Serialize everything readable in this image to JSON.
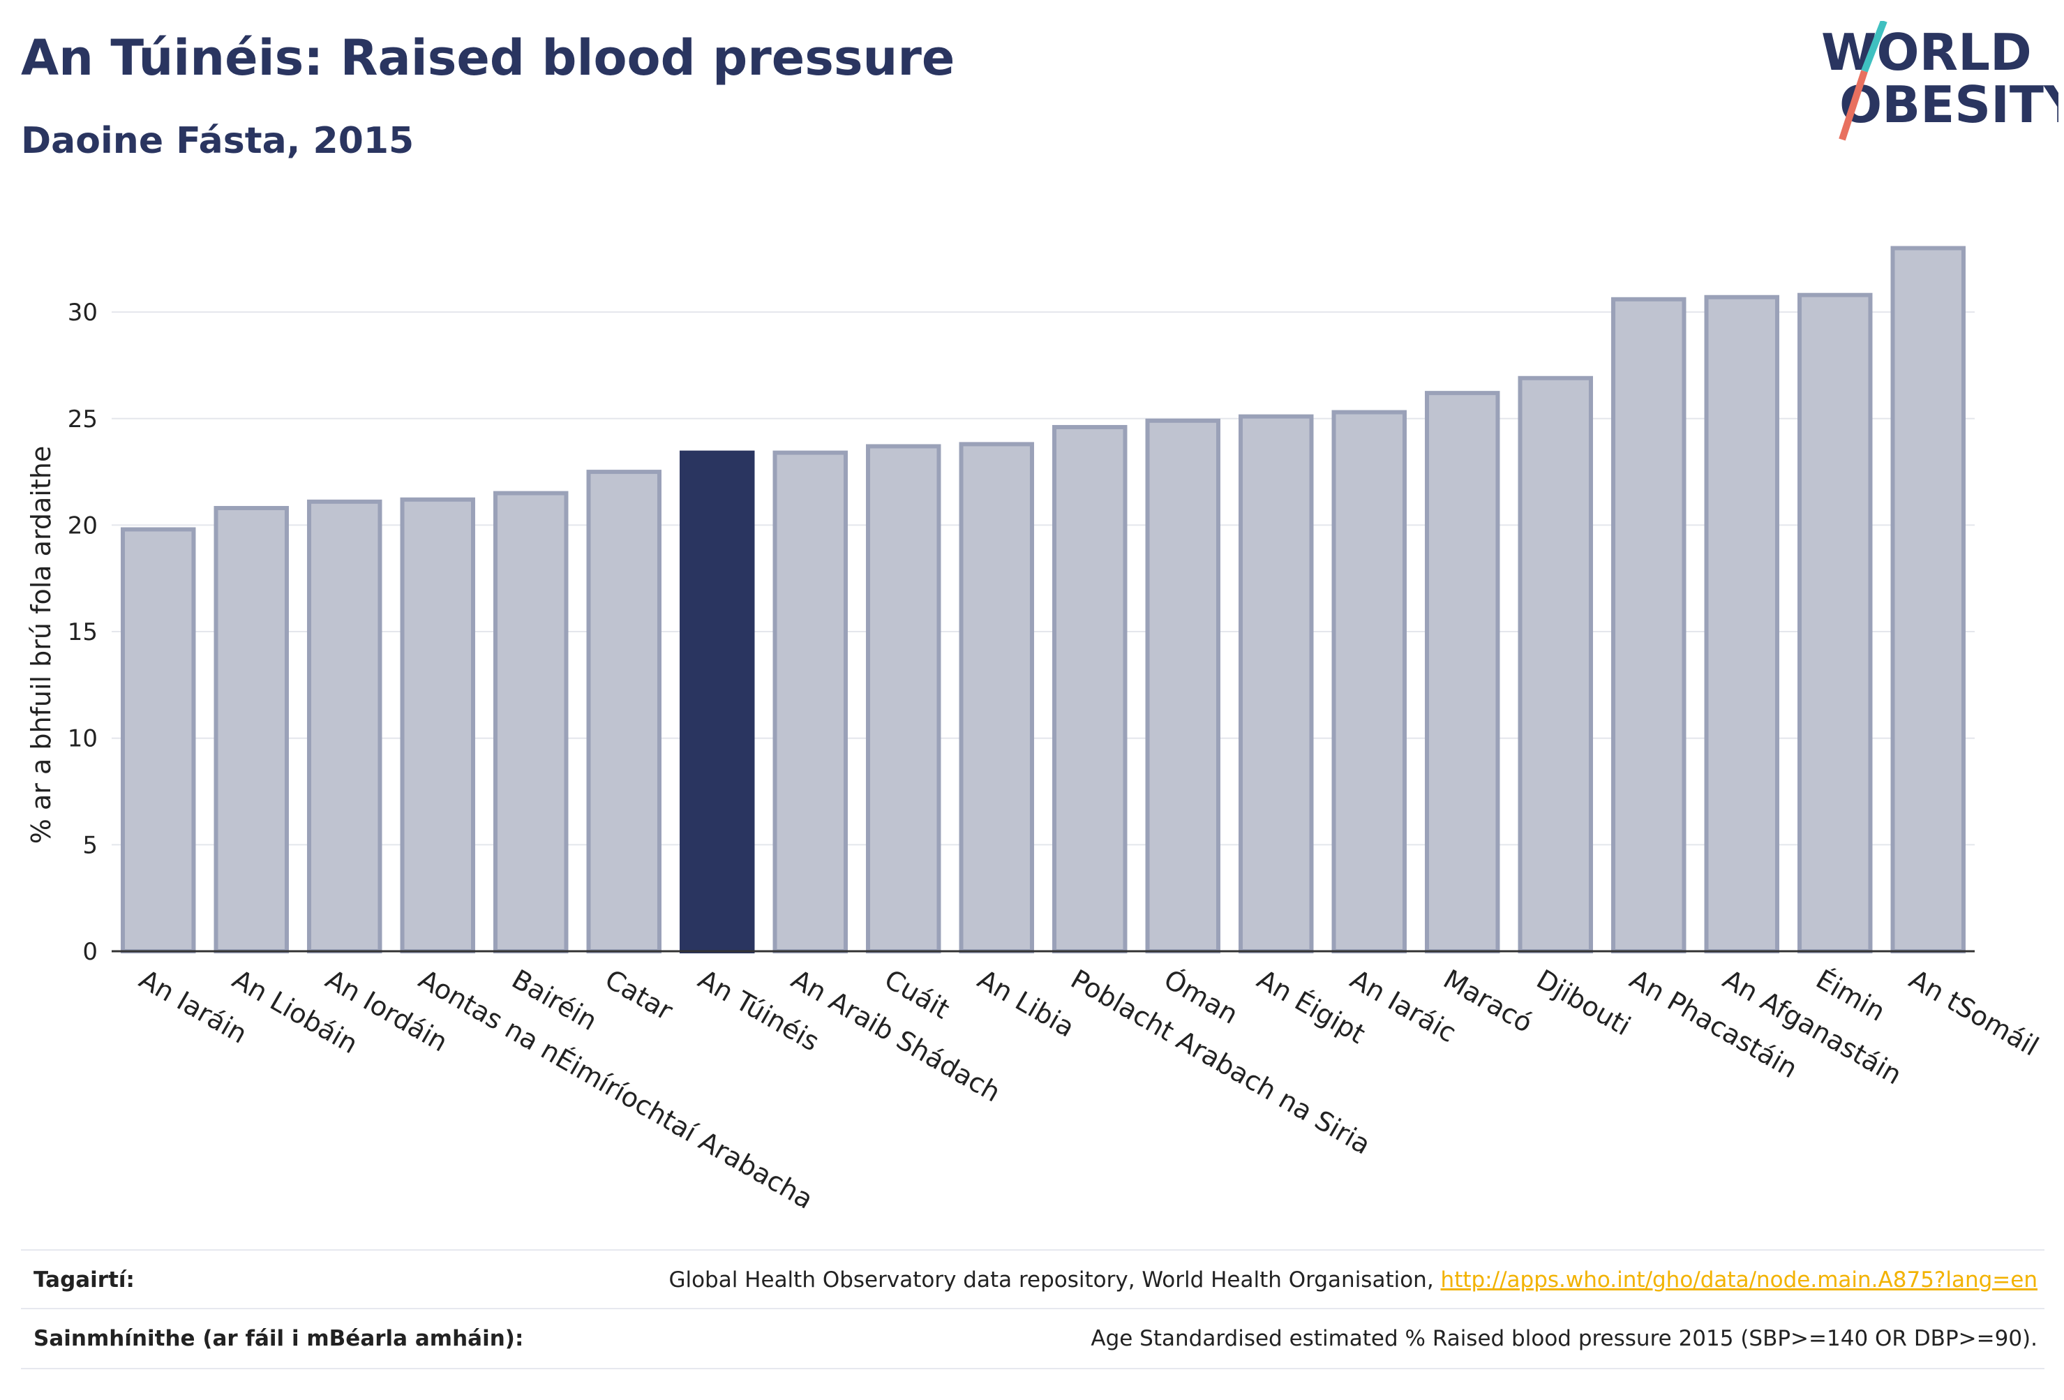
{
  "header": {
    "title": "An Túinéis: Raised blood pressure",
    "subtitle": "Daoine Fásta, 2015"
  },
  "logo": {
    "line1": "WORLD",
    "line2": "OBESITY"
  },
  "colors": {
    "highlight": "#2a3560",
    "bar": "#bfc3d0",
    "bar_edge": "#9aa1b8",
    "accent_teal": "#3fc0c0",
    "accent_red": "#e8705f",
    "link": "#f2b200"
  },
  "chart_data": {
    "type": "bar",
    "ylabel": "% ar a bhfuil brú fola ardaithe",
    "ylim": [
      0,
      34
    ],
    "yticks": [
      0,
      5,
      10,
      15,
      20,
      25,
      30
    ],
    "grid": true,
    "highlight": "An Túinéis",
    "categories": [
      "An Iaráin",
      "An Liobáin",
      "An Iordáin",
      "Aontas na nÉimíríochtaí Arabacha",
      "Bairéin",
      "Catar",
      "An Túinéis",
      "An Araib Shádach",
      "Cuáit",
      "An Libia",
      "Poblacht Arabach na Siria",
      "Óman",
      "An Éigipt",
      "An Iaráic",
      "Maracó",
      "Djibouti",
      "An Phacastáin",
      "An Afganastáin",
      "Éimin",
      "An tSomáil"
    ],
    "values": [
      19.8,
      20.8,
      21.1,
      21.2,
      21.5,
      22.5,
      23.4,
      23.4,
      23.7,
      23.8,
      24.6,
      24.9,
      25.1,
      25.3,
      26.2,
      26.9,
      30.6,
      30.7,
      30.8,
      33.0
    ]
  },
  "footer": {
    "references_label": "Tagairtí:",
    "references_text": "Global Health Observatory data repository, World Health Organisation,",
    "references_link": "http://apps.who.int/gho/data/node.main.A875?lang=en",
    "definitions_label": "Sainmhínithe (ar fáil i mBéarla amháin):",
    "definitions_text": "Age Standardised estimated % Raised blood pressure 2015 (SBP>=140 OR DBP>=90)."
  }
}
